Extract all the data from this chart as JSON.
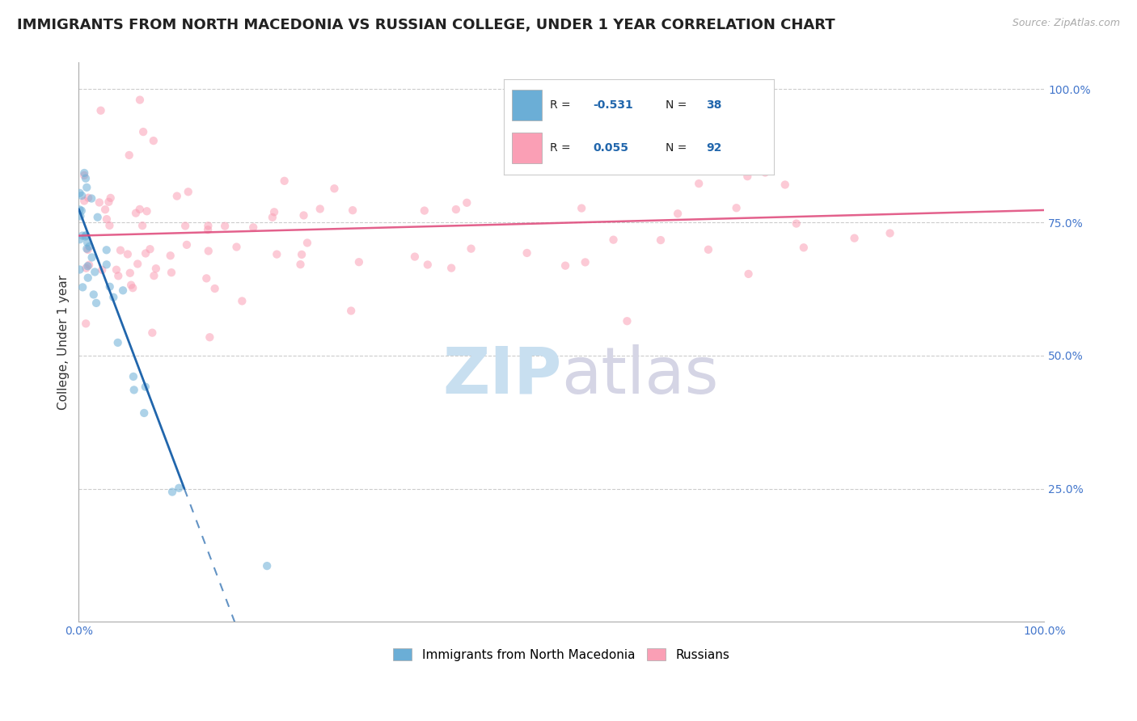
{
  "title": "IMMIGRANTS FROM NORTH MACEDONIA VS RUSSIAN COLLEGE, UNDER 1 YEAR CORRELATION CHART",
  "source": "Source: ZipAtlas.com",
  "xlabel_label": "Immigrants from North Macedonia",
  "ylabel_label": "College, Under 1 year",
  "xlim": [
    0.0,
    1.0
  ],
  "ylim": [
    0.0,
    1.05
  ],
  "xtick_positions": [
    0.0,
    1.0
  ],
  "xtick_labels": [
    "0.0%",
    "100.0%"
  ],
  "ytick_positions": [
    0.25,
    0.5,
    0.75,
    1.0
  ],
  "ytick_labels": [
    "25.0%",
    "50.0%",
    "75.0%",
    "100.0%"
  ],
  "r1": -0.531,
  "n1": 38,
  "r2": 0.055,
  "n2": 92,
  "color_blue": "#6baed6",
  "color_pink": "#fa9fb5",
  "color_blue_line": "#2166ac",
  "color_pink_line": "#e05080",
  "color_blue_text": "#2166ac",
  "color_tick": "#4477cc",
  "background_color": "#ffffff",
  "grid_color": "#cccccc",
  "title_fontsize": 13,
  "axis_label_fontsize": 11,
  "tick_fontsize": 10,
  "scatter_alpha": 0.55,
  "scatter_size": 55,
  "blue_line_intercept": 0.775,
  "blue_line_slope": -4.8,
  "pink_line_intercept": 0.725,
  "pink_line_slope": 0.048
}
